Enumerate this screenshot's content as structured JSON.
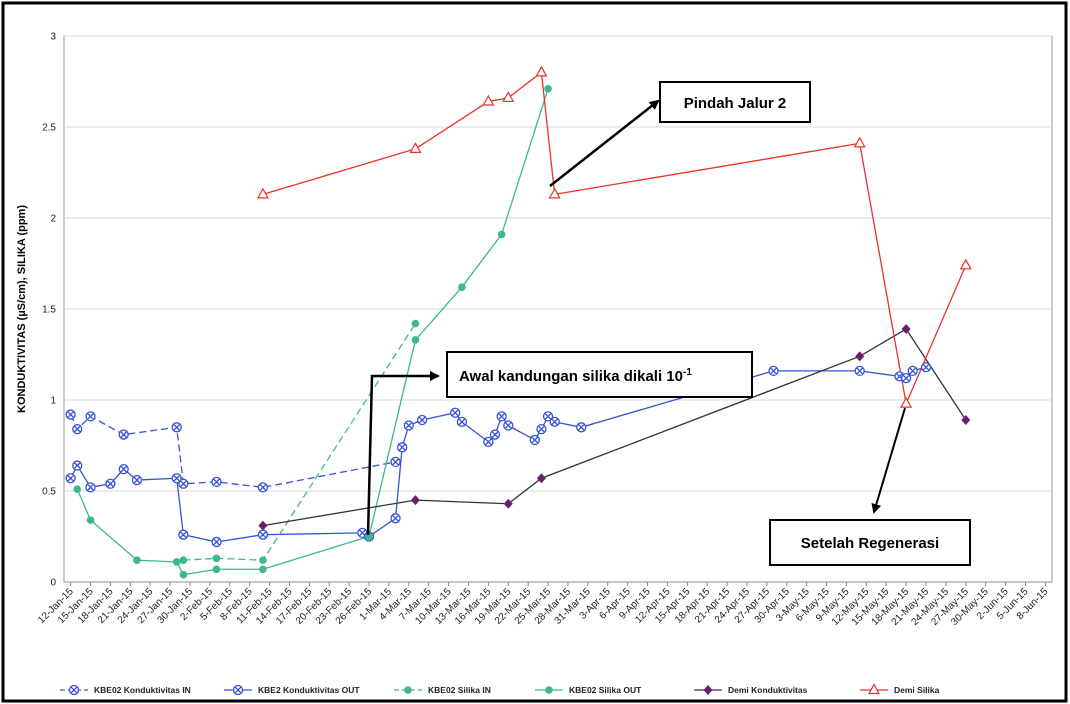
{
  "chart_data": {
    "type": "line",
    "y_label": "KONDUKTIVITAS (µS/cm), SILIKA (ppm)",
    "xlim": [
      "2015-01-11",
      "2015-06-09"
    ],
    "ylim": [
      0,
      3
    ],
    "yticks": [
      0,
      0.5,
      1,
      1.5,
      2,
      2.5,
      3
    ],
    "grid": true,
    "legend": "bottom",
    "xticks": [
      {
        "value": "2015-01-12",
        "label": "12-Jan-15"
      },
      {
        "value": "2015-01-15",
        "label": "15-Jan-15"
      },
      {
        "value": "2015-01-18",
        "label": "18-Jan-15"
      },
      {
        "value": "2015-01-21",
        "label": "21-Jan-15"
      },
      {
        "value": "2015-01-24",
        "label": "24-Jan-15"
      },
      {
        "value": "2015-01-27",
        "label": "27-Jan-15"
      },
      {
        "value": "2015-01-30",
        "label": "30-Jan-15"
      },
      {
        "value": "2015-02-02",
        "label": "2-Feb-15"
      },
      {
        "value": "2015-02-05",
        "label": "5-Feb-15"
      },
      {
        "value": "2015-02-08",
        "label": "8-Feb-15"
      },
      {
        "value": "2015-02-11",
        "label": "11-Feb-15"
      },
      {
        "value": "2015-02-14",
        "label": "14-Feb-15"
      },
      {
        "value": "2015-02-17",
        "label": "17-Feb-15"
      },
      {
        "value": "2015-02-20",
        "label": "20-Feb-15"
      },
      {
        "value": "2015-02-23",
        "label": "23-Feb-15"
      },
      {
        "value": "2015-02-26",
        "label": "26-Feb-15"
      },
      {
        "value": "2015-03-01",
        "label": "1-Mar-15"
      },
      {
        "value": "2015-03-04",
        "label": "4-Mar-15"
      },
      {
        "value": "2015-03-07",
        "label": "7-Mar-15"
      },
      {
        "value": "2015-03-10",
        "label": "10-Mar-15"
      },
      {
        "value": "2015-03-13",
        "label": "13-Mar-15"
      },
      {
        "value": "2015-03-16",
        "label": "16-Mar-15"
      },
      {
        "value": "2015-03-19",
        "label": "19-Mar-15"
      },
      {
        "value": "2015-03-22",
        "label": "22-Mar-15"
      },
      {
        "value": "2015-03-25",
        "label": "25-Mar-15"
      },
      {
        "value": "2015-03-28",
        "label": "28-Mar-15"
      },
      {
        "value": "2015-03-31",
        "label": "31-Mar-15"
      },
      {
        "value": "2015-04-03",
        "label": "3-Apr-15"
      },
      {
        "value": "2015-04-06",
        "label": "6-Apr-15"
      },
      {
        "value": "2015-04-09",
        "label": "9-Apr-15"
      },
      {
        "value": "2015-04-12",
        "label": "12-Apr-15"
      },
      {
        "value": "2015-04-15",
        "label": "15-Apr-15"
      },
      {
        "value": "2015-04-18",
        "label": "18-Apr-15"
      },
      {
        "value": "2015-04-21",
        "label": "21-Apr-15"
      },
      {
        "value": "2015-04-24",
        "label": "24-Apr-15"
      },
      {
        "value": "2015-04-27",
        "label": "27-Apr-15"
      },
      {
        "value": "2015-04-30",
        "label": "30-Apr-15"
      },
      {
        "value": "2015-05-03",
        "label": "3-May-15"
      },
      {
        "value": "2015-05-06",
        "label": "6-May-15"
      },
      {
        "value": "2015-05-09",
        "label": "9-May-15"
      },
      {
        "value": "2015-05-12",
        "label": "12-May-15"
      },
      {
        "value": "2015-05-15",
        "label": "15-May-15"
      },
      {
        "value": "2015-05-18",
        "label": "18-May-15"
      },
      {
        "value": "2015-05-21",
        "label": "21-May-15"
      },
      {
        "value": "2015-05-24",
        "label": "24-May-15"
      },
      {
        "value": "2015-05-27",
        "label": "27-May-15"
      },
      {
        "value": "2015-05-30",
        "label": "30-May-15"
      },
      {
        "value": "2015-06-02",
        "label": "2-Jun-15"
      },
      {
        "value": "2015-06-05",
        "label": "5-Jun-15"
      },
      {
        "value": "2015-06-08",
        "label": "8-Jun-15"
      }
    ],
    "series": [
      {
        "name": "KBE02 Konduktivitas IN",
        "color": "#3552d8",
        "line_style": "dashed",
        "marker": "x-circle",
        "x": [
          "2015-01-12",
          "2015-01-13",
          "2015-01-15",
          "2015-01-20",
          "2015-01-28",
          "2015-01-29",
          "2015-02-03",
          "2015-02-10",
          "2015-03-02"
        ],
        "values": [
          0.92,
          0.84,
          0.91,
          0.81,
          0.85,
          0.54,
          0.55,
          0.52,
          0.66
        ]
      },
      {
        "name": "KBE2 Konduktivitas OUT",
        "color": "#3552d8",
        "line_style": "solid",
        "marker": "x-circle",
        "x": [
          "2015-01-12",
          "2015-01-13",
          "2015-01-15",
          "2015-01-18",
          "2015-01-20",
          "2015-01-22",
          "2015-01-28",
          "2015-01-29",
          "2015-02-03",
          "2015-02-10",
          "2015-02-25",
          "2015-02-26",
          "2015-03-02",
          "2015-03-03",
          "2015-03-04",
          "2015-03-06",
          "2015-03-11",
          "2015-03-12",
          "2015-03-16",
          "2015-03-17",
          "2015-03-18",
          "2015-03-19",
          "2015-03-23",
          "2015-03-24",
          "2015-03-25",
          "2015-03-26",
          "2015-03-30",
          "2015-04-28",
          "2015-05-11",
          "2015-05-17",
          "2015-05-18",
          "2015-05-19",
          "2015-05-21"
        ],
        "values": [
          0.57,
          0.64,
          0.52,
          0.54,
          0.62,
          0.56,
          0.57,
          0.26,
          0.22,
          0.26,
          0.27,
          0.25,
          0.35,
          0.74,
          0.86,
          0.89,
          0.93,
          0.88,
          0.77,
          0.81,
          0.91,
          0.86,
          0.78,
          0.84,
          0.91,
          0.88,
          0.85,
          1.16,
          1.16,
          1.13,
          1.12,
          1.16,
          1.18
        ]
      },
      {
        "name": "KBE02 Silika IN",
        "color": "#3cb88a",
        "line_style": "dashed",
        "marker": "circle",
        "x": [
          "2015-01-29",
          "2015-02-03",
          "2015-02-10",
          "2015-03-05"
        ],
        "values": [
          0.12,
          0.13,
          0.12,
          1.42
        ]
      },
      {
        "name": "KBE02 Silika OUT",
        "color": "#3cb88a",
        "line_style": "solid",
        "marker": "circle",
        "x": [
          "2015-01-13",
          "2015-01-15",
          "2015-01-22",
          "2015-01-28",
          "2015-01-29",
          "2015-02-03",
          "2015-02-10",
          "2015-02-26",
          "2015-03-05",
          "2015-03-12",
          "2015-03-18",
          "2015-03-25"
        ],
        "values": [
          0.51,
          0.34,
          0.12,
          0.11,
          0.04,
          0.07,
          0.07,
          0.25,
          1.33,
          1.62,
          1.91,
          2.71
        ]
      },
      {
        "name": "Demi Konduktivitas",
        "color": "#6b1f6b",
        "line_style": "solid",
        "marker": "diamond",
        "line_color": "#333333",
        "x": [
          "2015-02-10",
          "2015-03-05",
          "2015-03-19",
          "2015-03-24",
          "2015-05-11",
          "2015-05-18",
          "2015-05-27"
        ],
        "values": [
          0.31,
          0.45,
          0.43,
          0.57,
          1.24,
          1.39,
          0.89
        ]
      },
      {
        "name": "Demi Silika",
        "color": "#e8332a",
        "line_style": "solid",
        "marker": "triangle",
        "x": [
          "2015-02-10",
          "2015-03-05",
          "2015-03-16",
          "2015-03-19",
          "2015-03-24",
          "2015-03-26",
          "2015-05-11",
          "2015-05-18",
          "2015-05-27"
        ],
        "values": [
          2.13,
          2.38,
          2.64,
          2.66,
          2.8,
          2.13,
          2.41,
          0.98,
          1.74
        ]
      }
    ],
    "annotations": [
      {
        "text": "Pindah Jalur 2"
      },
      {
        "text": "Awal kandungan silika dikali 10",
        "superscript": "-1"
      },
      {
        "text": "Setelah Regenerasi"
      }
    ]
  }
}
